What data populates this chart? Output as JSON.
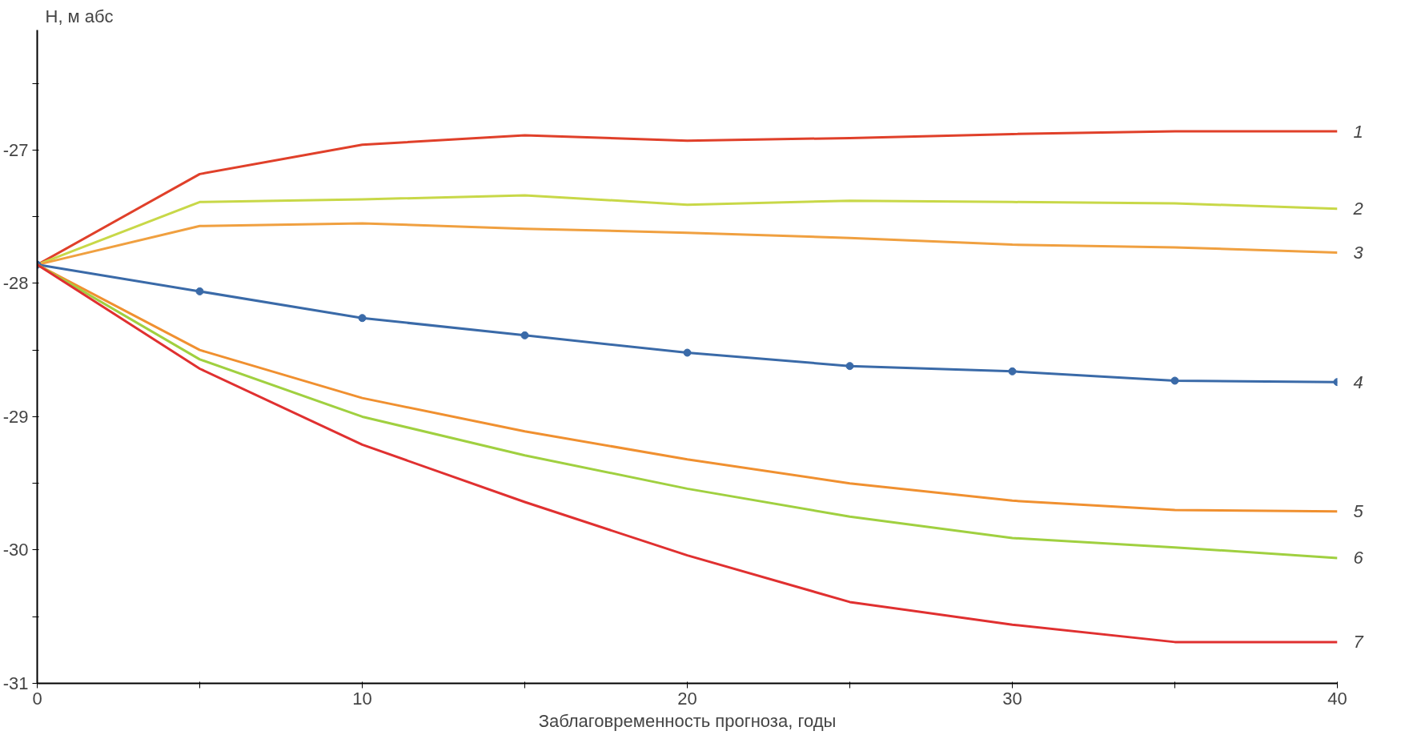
{
  "chart_data": {
    "type": "line",
    "ylabel": "Н, м абс",
    "xlabel": "Заблаговременность прогноза, годы",
    "x": [
      0,
      5,
      10,
      15,
      20,
      25,
      30,
      35,
      40
    ],
    "xlim": [
      0,
      40
    ],
    "xticks": [
      0,
      {
        "value": 5,
        "label": null
      },
      10,
      {
        "value": 15,
        "label": null
      },
      20,
      {
        "value": 25,
        "label": null
      },
      30,
      {
        "value": 35,
        "label": null
      },
      40
    ],
    "ylim": [
      -31,
      -26.1
    ],
    "yticks": [
      -31,
      {
        "value": -30.5,
        "label": null
      },
      -30,
      {
        "value": -29.5,
        "label": null
      },
      -29,
      {
        "value": -28.5,
        "label": null
      },
      -28,
      {
        "value": -27.5,
        "label": null
      },
      -27,
      {
        "value": -26.5,
        "label": null
      }
    ],
    "grid": false,
    "line_style": "solid",
    "series": [
      {
        "name": "1",
        "color": "#e0402a",
        "values": [
          -27.86,
          -27.18,
          -26.96,
          -26.89,
          -26.93,
          -26.91,
          -26.88,
          -26.86,
          -26.86
        ]
      },
      {
        "name": "2",
        "color": "#c8d848",
        "values": [
          -27.86,
          -27.39,
          -27.37,
          -27.34,
          -27.41,
          -27.38,
          -27.39,
          -27.4,
          -27.44
        ]
      },
      {
        "name": "3",
        "color": "#f0a040",
        "values": [
          -27.86,
          -27.57,
          -27.55,
          -27.59,
          -27.62,
          -27.66,
          -27.71,
          -27.73,
          -27.77
        ]
      },
      {
        "name": "4",
        "color": "#3a6aa8",
        "marker": "circle",
        "values": [
          -27.86,
          -28.06,
          -28.26,
          -28.39,
          -28.52,
          -28.62,
          -28.66,
          -28.73,
          -28.74
        ]
      },
      {
        "name": "5",
        "color": "#f09030",
        "values": [
          -27.86,
          -28.5,
          -28.86,
          -29.11,
          -29.32,
          -29.5,
          -29.63,
          -29.7,
          -29.71
        ]
      },
      {
        "name": "6",
        "color": "#a0d040",
        "values": [
          -27.86,
          -28.57,
          -29.0,
          -29.29,
          -29.54,
          -29.75,
          -29.91,
          -29.98,
          -30.06
        ]
      },
      {
        "name": "7",
        "color": "#e03030",
        "values": [
          -27.86,
          -28.64,
          -29.21,
          -29.64,
          -30.04,
          -30.39,
          -30.56,
          -30.69,
          -30.69
        ]
      }
    ]
  }
}
